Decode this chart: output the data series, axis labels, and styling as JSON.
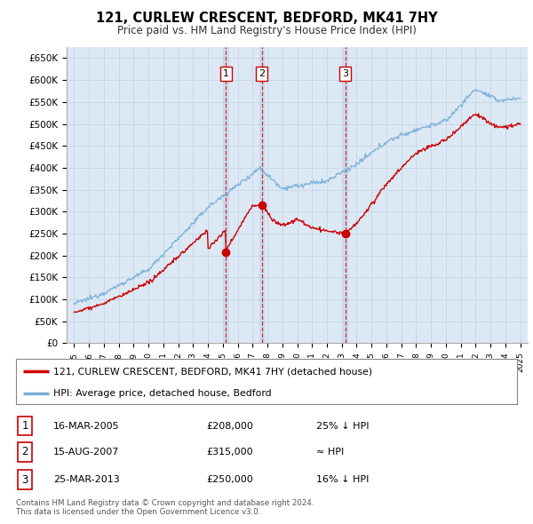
{
  "title": "121, CURLEW CRESCENT, BEDFORD, MK41 7HY",
  "subtitle": "Price paid vs. HM Land Registry's House Price Index (HPI)",
  "background_color": "#ffffff",
  "grid_color": "#c8d8e8",
  "plot_bg_color": "#dce9f5",
  "ylim": [
    0,
    675000
  ],
  "yticks": [
    0,
    50000,
    100000,
    150000,
    200000,
    250000,
    300000,
    350000,
    400000,
    450000,
    500000,
    550000,
    600000,
    650000
  ],
  "sale_points": [
    {
      "date_num": 2005.21,
      "price": 208000,
      "label": "1"
    },
    {
      "date_num": 2007.62,
      "price": 315000,
      "label": "2"
    },
    {
      "date_num": 2013.23,
      "price": 250000,
      "label": "3"
    }
  ],
  "sale_dates": [
    "16-MAR-2005",
    "15-AUG-2007",
    "25-MAR-2013"
  ],
  "sale_prices": [
    "£208,000",
    "£315,000",
    "£250,000"
  ],
  "sale_hpi": [
    "25% ↓ HPI",
    "≈ HPI",
    "16% ↓ HPI"
  ],
  "legend_property": "121, CURLEW CRESCENT, BEDFORD, MK41 7HY (detached house)",
  "legend_hpi": "HPI: Average price, detached house, Bedford",
  "property_color": "#cc0000",
  "hpi_color": "#7aaed6",
  "vline_color": "#cc0000",
  "shade_color": "#c8ddf0",
  "note": "Contains HM Land Registry data © Crown copyright and database right 2024.\nThis data is licensed under the Open Government Licence v3.0.",
  "xmin": 1994.5,
  "xmax": 2025.5
}
